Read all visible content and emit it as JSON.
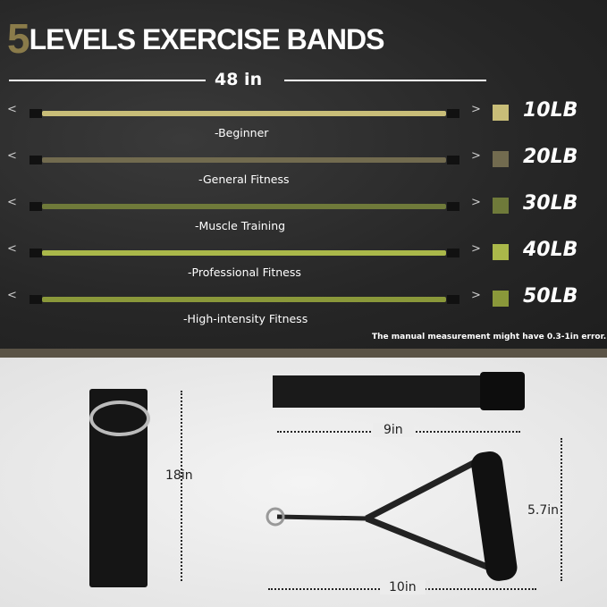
{
  "title": {
    "number": "5",
    "text": "LEVELS EXERCISE BANDS"
  },
  "length_label": "48 in",
  "bands": [
    {
      "resistance": "10LB",
      "level": "-Beginner",
      "color": "#c8bd78"
    },
    {
      "resistance": "20LB",
      "level": "-General Fitness",
      "color": "#726b4f"
    },
    {
      "resistance": "30LB",
      "level": "-Muscle Training",
      "color": "#6f7a3a"
    },
    {
      "resistance": "40LB",
      "level": "-Professional  Fitness",
      "color": "#aab84a"
    },
    {
      "resistance": "50LB",
      "level": "-High-intensity Fitness",
      "color": "#8a983a"
    }
  ],
  "note": "The manual measurement might have 0.3-1in error.",
  "accessories": {
    "door_anchor_length": "18in",
    "ankle_strap_length": "9in",
    "handle_height": "5.7in",
    "handle_length": "10in"
  }
}
